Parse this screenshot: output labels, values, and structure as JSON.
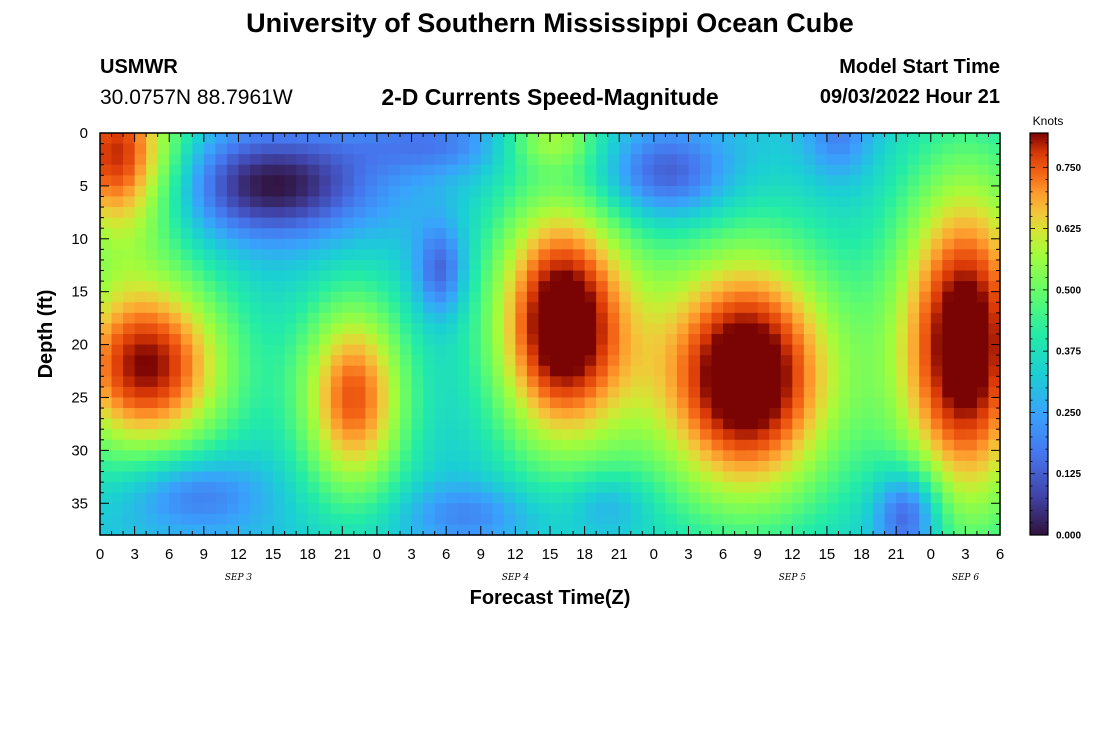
{
  "page": {
    "title": "University of Southern Mississippi Ocean Cube",
    "footer_title": "University of Southern Mississippi Ocean Cube",
    "station": "USMWR",
    "coords": "30.0757N  88.7961W",
    "subtitle": "2-D Currents Speed-Magnitude",
    "model_start_label": "Model Start Time",
    "model_start_value": "09/03/2022 Hour 21"
  },
  "chart_data": {
    "type": "heatmap",
    "title": "2-D Currents Speed-Magnitude",
    "xlabel": "Forecast Time(Z)",
    "ylabel": "Depth (ft)",
    "x_range_hours": [
      0,
      78
    ],
    "y_range_ft": [
      0,
      38
    ],
    "x_tick_labels": [
      "0",
      "3",
      "6",
      "9",
      "12",
      "15",
      "18",
      "21",
      "0",
      "3",
      "6",
      "9",
      "12",
      "15",
      "18",
      "21",
      "0",
      "3",
      "6",
      "9",
      "12",
      "15",
      "18",
      "21",
      "0",
      "3",
      "6"
    ],
    "date_labels": [
      {
        "label": "SEP 3",
        "hour": 12
      },
      {
        "label": "SEP 4",
        "hour": 36
      },
      {
        "label": "SEP 5",
        "hour": 60
      },
      {
        "label": "SEP 6",
        "hour": 75
      }
    ],
    "y_ticks": [
      0,
      5,
      10,
      15,
      20,
      25,
      30,
      35
    ],
    "colorbar": {
      "unit": "Knots",
      "min": 0.0,
      "max": 0.82,
      "ticks": [
        "0.000",
        "0.125",
        "0.250",
        "0.375",
        "0.500",
        "0.625",
        "0.750"
      ],
      "tick_values": [
        0.0,
        0.125,
        0.25,
        0.375,
        0.5,
        0.625,
        0.75
      ]
    },
    "grid_size": {
      "cols": 78,
      "rows": 38
    },
    "background": 0.3,
    "features": [
      {
        "hour": 1.5,
        "depth": 2,
        "sh": 4,
        "sd": 6,
        "v": 0.5
      },
      {
        "hour": 4,
        "depth": 22,
        "sh": 5.5,
        "sd": 6.5,
        "v": 0.52
      },
      {
        "hour": 15,
        "depth": 5,
        "sh": 6,
        "sd": 3.5,
        "v": -0.3
      },
      {
        "hour": 8,
        "depth": 34,
        "sh": 4,
        "sd": 2.5,
        "v": -0.17
      },
      {
        "hour": 22,
        "depth": 25,
        "sh": 3.5,
        "sd": 7,
        "v": 0.45
      },
      {
        "hour": 29,
        "depth": 1,
        "sh": 5,
        "sd": 2,
        "v": -0.13
      },
      {
        "hour": 29.5,
        "depth": 13,
        "sh": 1.5,
        "sd": 3,
        "v": -0.2
      },
      {
        "hour": 39,
        "depth": 0.5,
        "sh": 3,
        "sd": 2,
        "v": 0.2
      },
      {
        "hour": 40,
        "depth": 18,
        "sh": 4.5,
        "sd": 9,
        "v": 0.58
      },
      {
        "hour": 32,
        "depth": 36,
        "sh": 4,
        "sd": 2,
        "v": -0.12
      },
      {
        "hour": 44,
        "depth": 35,
        "sh": 2.5,
        "sd": 2,
        "v": -0.1
      },
      {
        "hour": 49,
        "depth": 4,
        "sh": 4,
        "sd": 3,
        "v": -0.22
      },
      {
        "hour": 56,
        "depth": 23,
        "sh": 6,
        "sd": 9,
        "v": 0.6
      },
      {
        "hour": 64,
        "depth": 0,
        "sh": 2,
        "sd": 3,
        "v": -0.13
      },
      {
        "hour": 70,
        "depth": 36,
        "sh": 2,
        "sd": 3,
        "v": -0.28
      },
      {
        "hour": 75,
        "depth": 20,
        "sh": 4.5,
        "sd": 12,
        "v": 0.58
      }
    ]
  }
}
